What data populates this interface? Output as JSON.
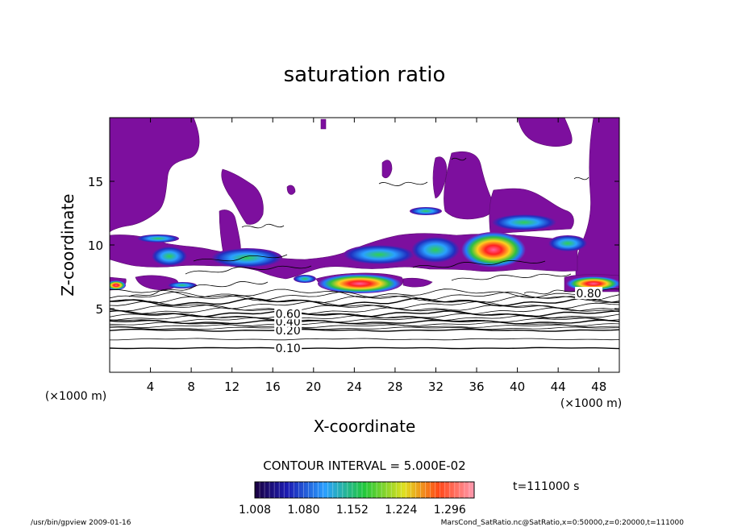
{
  "chart_data": {
    "type": "contour",
    "title": "saturation ratio",
    "xlabel": "X-coordinate",
    "ylabel": "Z-coordinate",
    "x_unit": "(×1000 m)",
    "y_unit": "(×1000 m)",
    "xlim": [
      0,
      50
    ],
    "ylim": [
      0,
      20
    ],
    "x_ticks": [
      4,
      8,
      12,
      16,
      20,
      24,
      28,
      32,
      36,
      40,
      44,
      48
    ],
    "y_ticks": [
      5,
      10,
      15
    ],
    "contour_interval_text": "CONTOUR INTERVAL = 5.000E-02",
    "contour_levels": [
      0.1,
      0.15,
      0.2,
      0.25,
      0.3,
      0.35,
      0.4,
      0.45,
      0.5,
      0.55,
      0.6,
      0.65,
      0.7,
      0.75,
      0.8,
      0.85,
      0.9,
      0.95
    ],
    "contour_labels": [
      {
        "text": "0.10",
        "x": 17.5,
        "z": 1.9
      },
      {
        "text": "0.20",
        "x": 17.5,
        "z": 3.3
      },
      {
        "text": "0.40",
        "x": 17.5,
        "z": 4.0
      },
      {
        "text": "0.60",
        "x": 17.5,
        "z": 4.6
      },
      {
        "text": "0.80",
        "x": 47.0,
        "z": 6.2
      }
    ],
    "shading_colorbar": {
      "min": 1.008,
      "max": 1.332,
      "tick_labels": [
        "1.008",
        "1.080",
        "1.152",
        "1.224",
        "1.296"
      ]
    },
    "supersaturated_region_color": "#7d0f9e",
    "time_label": "t=111000 s",
    "grid": false
  },
  "footer": {
    "left": "/usr/bin/gpview   2009-01-16",
    "right": "MarsCond_SatRatio.nc@SatRatio,x=0:50000,z=0:20000,t=111000"
  }
}
